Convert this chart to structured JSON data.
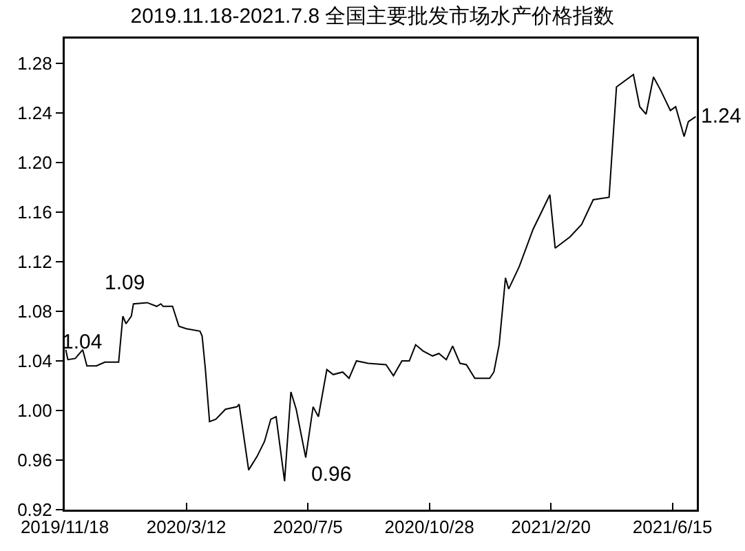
{
  "chart_data": {
    "type": "line",
    "title": "2019.11.18-2021.7.8 全国主要批发市场水产价格指数",
    "x": [
      "2019-11-19",
      "2019-11-21",
      "2019-11-28",
      "2019-12-05",
      "2019-12-09",
      "2019-12-18",
      "2019-12-26",
      "2020-01-08",
      "2020-01-12",
      "2020-01-15",
      "2020-01-20",
      "2020-01-22",
      "2020-02-04",
      "2020-02-13",
      "2020-02-17",
      "2020-02-19",
      "2020-02-28",
      "2020-03-05",
      "2020-03-12",
      "2020-03-25",
      "2020-03-27",
      "2020-03-30",
      "2020-04-03",
      "2020-04-09",
      "2020-04-18",
      "2020-04-29",
      "2020-05-01",
      "2020-05-10",
      "2020-05-18",
      "2020-05-25",
      "2020-05-31",
      "2020-06-05",
      "2020-06-13",
      "2020-06-19",
      "2020-06-24",
      "2020-07-03",
      "2020-07-10",
      "2020-07-15",
      "2020-07-23",
      "2020-07-29",
      "2020-08-07",
      "2020-08-13",
      "2020-08-20",
      "2020-08-31",
      "2020-09-17",
      "2020-09-24",
      "2020-10-02",
      "2020-10-09",
      "2020-10-15",
      "2020-10-22",
      "2020-10-31",
      "2020-11-06",
      "2020-11-13",
      "2020-11-19",
      "2020-11-26",
      "2020-12-02",
      "2020-12-10",
      "2020-12-24",
      "2020-12-28",
      "2021-01-02",
      "2021-01-08",
      "2021-01-11",
      "2021-01-21",
      "2021-02-03",
      "2021-02-19",
      "2021-02-24",
      "2021-03-10",
      "2021-03-21",
      "2021-04-01",
      "2021-04-16",
      "2021-04-23",
      "2021-05-09",
      "2021-05-15",
      "2021-05-21",
      "2021-05-28",
      "2021-06-04",
      "2021-06-13",
      "2021-06-18",
      "2021-06-26",
      "2021-06-30",
      "2021-07-07"
    ],
    "series": [
      {
        "color": "#000000",
        "values": [
          1.049,
          1.041,
          1.042,
          1.049,
          1.036,
          1.036,
          1.039,
          1.039,
          1.076,
          1.07,
          1.076,
          1.086,
          1.087,
          1.084,
          1.086,
          1.084,
          1.084,
          1.068,
          1.066,
          1.064,
          1.06,
          1.034,
          0.991,
          0.993,
          1.001,
          1.003,
          1.005,
          0.952,
          0.963,
          0.975,
          0.993,
          0.995,
          0.943,
          1.015,
          1.001,
          0.962,
          1.003,
          0.995,
          1.033,
          1.029,
          1.031,
          1.026,
          1.04,
          1.038,
          1.037,
          1.028,
          1.04,
          1.04,
          1.053,
          1.048,
          1.044,
          1.046,
          1.041,
          1.052,
          1.038,
          1.037,
          1.026,
          1.026,
          1.031,
          1.053,
          1.107,
          1.098,
          1.116,
          1.146,
          1.174,
          1.131,
          1.14,
          1.15,
          1.17,
          1.172,
          1.261,
          1.271,
          1.245,
          1.239,
          1.269,
          1.258,
          1.242,
          1.245,
          1.221,
          1.233,
          1.237
        ]
      }
    ],
    "xlim": [
      "2019-11-18",
      "2021-07-08"
    ],
    "xticks": [
      {
        "value": "2019-11-18",
        "label": "2019/11/18"
      },
      {
        "value": "2020-03-12",
        "label": "2020/3/12"
      },
      {
        "value": "2020-07-05",
        "label": "2020/7/5"
      },
      {
        "value": "2020-10-28",
        "label": "2020/10/28"
      },
      {
        "value": "2021-02-20",
        "label": "2021/2/20"
      },
      {
        "value": "2021-06-15",
        "label": "2021/6/15"
      }
    ],
    "ylim": [
      0.92,
      1.3
    ],
    "yticks": [
      {
        "value": 0.92,
        "label": "0.92"
      },
      {
        "value": 0.96,
        "label": "0.96"
      },
      {
        "value": 1.0,
        "label": "1.00"
      },
      {
        "value": 1.04,
        "label": "1.04"
      },
      {
        "value": 1.08,
        "label": "1.08"
      },
      {
        "value": 1.12,
        "label": "1.12"
      },
      {
        "value": 1.16,
        "label": "1.16"
      },
      {
        "value": 1.2,
        "label": "1.20"
      },
      {
        "value": 1.24,
        "label": "1.24"
      },
      {
        "value": 1.28,
        "label": "1.28"
      }
    ],
    "annotations": [
      {
        "text": "1.09",
        "x": "2020-02-04",
        "y": 1.087
      },
      {
        "text": "1.04",
        "x": "2019-12-26",
        "y": 1.039
      },
      {
        "text": "0.96",
        "x": "2020-07-03",
        "y": 0.962
      },
      {
        "text": "1.24",
        "x": "2021-07-07",
        "y": 1.237
      }
    ],
    "grid": false,
    "marker": "none",
    "line_style": "solid"
  }
}
